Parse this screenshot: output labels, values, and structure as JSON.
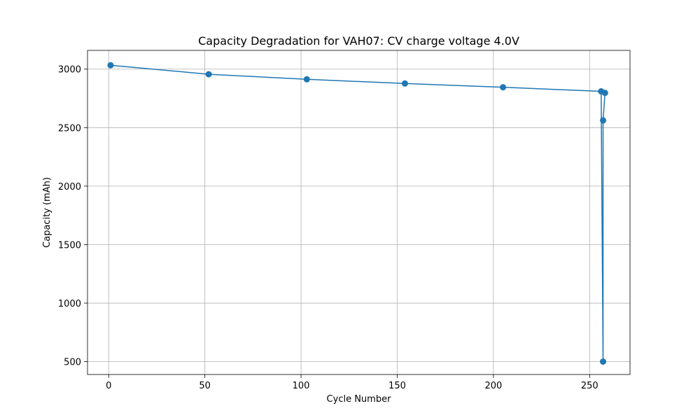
{
  "chart_data": {
    "type": "line",
    "title": "Capacity Degradation for VAH07: CV charge voltage 4.0V",
    "xlabel": "Cycle Number",
    "ylabel": "Capacity (mAh)",
    "xlim": [
      -11,
      271
    ],
    "ylim": [
      390,
      3160
    ],
    "xticks": [
      0,
      50,
      100,
      150,
      200,
      250
    ],
    "yticks": [
      500,
      1000,
      1500,
      2000,
      2500,
      3000
    ],
    "grid": true,
    "legend": "none",
    "series": [
      {
        "color": "#1f77b4",
        "marker": "circle",
        "points": [
          {
            "x": 1,
            "y": 3033
          },
          {
            "x": 52,
            "y": 2956
          },
          {
            "x": 103,
            "y": 2913
          },
          {
            "x": 154,
            "y": 2877
          },
          {
            "x": 205,
            "y": 2845
          },
          {
            "x": 256,
            "y": 2810
          },
          {
            "x": 257,
            "y": 500
          },
          {
            "x": 257,
            "y": 2562
          },
          {
            "x": 258,
            "y": 2797
          }
        ]
      }
    ]
  }
}
